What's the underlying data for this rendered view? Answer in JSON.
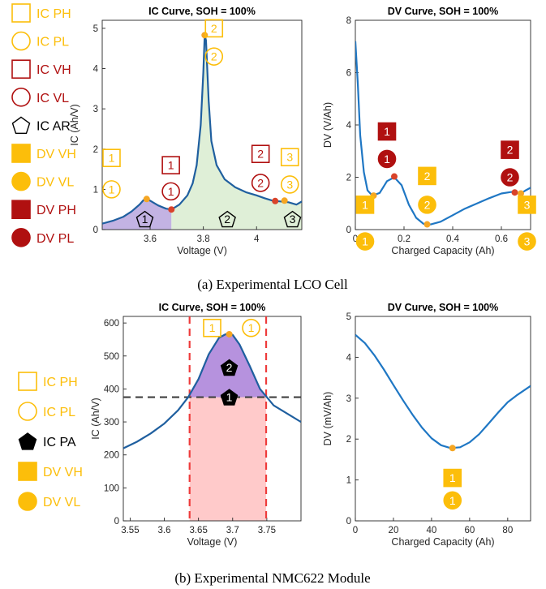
{
  "captions": {
    "a": "(a) Experimental LCO Cell",
    "b": "(b) Experimental NMC622 Module"
  },
  "colors": {
    "ic_line": "#1f5f9f",
    "dv_line": "#1f77c4",
    "dark_red": "#b01010",
    "gold": "#fcbe0a",
    "marker_orange": "#f5a623",
    "marker_red": "#d9432a",
    "area1": "#b8a6de",
    "area2": "#d9ecd0",
    "area_purple": "#a97fd8",
    "area_pink": "#ffc4c4",
    "dash_red": "#ee3b3b",
    "dash_gray": "#404040"
  },
  "legend_a": [
    {
      "label": "IC PH",
      "symbol": "square-open",
      "color": "gold"
    },
    {
      "label": "IC PL",
      "symbol": "circle-open",
      "color": "gold"
    },
    {
      "label": "IC VH",
      "symbol": "square-open",
      "color": "dark_red"
    },
    {
      "label": "IC VL",
      "symbol": "circle-open",
      "color": "dark_red"
    },
    {
      "label": "IC AR",
      "symbol": "pentagon-open",
      "color": "black"
    },
    {
      "label": "DV VH",
      "symbol": "square-filled",
      "color": "gold"
    },
    {
      "label": "DV VL",
      "symbol": "circle-filled",
      "color": "gold"
    },
    {
      "label": "DV PH",
      "symbol": "square-filled",
      "color": "dark_red"
    },
    {
      "label": "DV PL",
      "symbol": "circle-filled",
      "color": "dark_red"
    }
  ],
  "legend_b": [
    {
      "label": "IC PH",
      "symbol": "square-open",
      "color": "gold"
    },
    {
      "label": "IC PL",
      "symbol": "circle-open",
      "color": "gold"
    },
    {
      "label": "IC PA",
      "symbol": "pentagon-filled",
      "color": "black"
    },
    {
      "label": "DV VH",
      "symbol": "square-filled",
      "color": "gold"
    },
    {
      "label": "DV VL",
      "symbol": "circle-filled",
      "color": "gold"
    }
  ],
  "chart_data": [
    {
      "id": "a-ic",
      "type": "line",
      "title": "IC Curve, SOH = 100%",
      "xlabel": "Voltage (V)",
      "ylabel": "IC (Ah/V)",
      "xlim": [
        3.42,
        4.17
      ],
      "ylim": [
        0,
        5.2
      ],
      "xticks": [
        3.6,
        3.8,
        4.0
      ],
      "xticklabels": [
        "3.6",
        "3.8",
        "4"
      ],
      "yticks": [
        0,
        1,
        2,
        3,
        4,
        5
      ],
      "series": [
        {
          "x": [
            3.42,
            3.46,
            3.5,
            3.53,
            3.56,
            3.575,
            3.585,
            3.6,
            3.63,
            3.66,
            3.68,
            3.71,
            3.74,
            3.76,
            3.775,
            3.79,
            3.8,
            3.805,
            3.81,
            3.82,
            3.83,
            3.85,
            3.88,
            3.92,
            3.96,
            4.0,
            4.03,
            4.06,
            4.09,
            4.12,
            4.15,
            4.17
          ],
          "y": [
            0.15,
            0.22,
            0.32,
            0.45,
            0.62,
            0.73,
            0.76,
            0.72,
            0.6,
            0.52,
            0.5,
            0.62,
            0.85,
            1.15,
            1.6,
            2.6,
            3.9,
            4.83,
            4.7,
            3.2,
            2.2,
            1.6,
            1.25,
            1.05,
            0.93,
            0.85,
            0.78,
            0.72,
            0.7,
            0.68,
            0.62,
            0.7
          ]
        }
      ],
      "markers": [
        {
          "x": 3.587,
          "y": 0.76,
          "color": "marker_orange"
        },
        {
          "x": 3.68,
          "y": 0.5,
          "color": "marker_red"
        },
        {
          "x": 3.805,
          "y": 4.83,
          "color": "marker_orange"
        },
        {
          "x": 4.07,
          "y": 0.71,
          "color": "marker_red"
        },
        {
          "x": 4.105,
          "y": 0.72,
          "color": "marker_orange"
        }
      ],
      "areas": [
        {
          "from": 3.42,
          "to": 3.68,
          "color": "area1"
        },
        {
          "from": 3.68,
          "to": 4.17,
          "color": "area2"
        }
      ],
      "annotations": [
        {
          "shape": "square-open",
          "text": "1",
          "color": "gold",
          "x": 3.455,
          "y": 1.78
        },
        {
          "shape": "circle-open",
          "text": "1",
          "color": "gold",
          "x": 3.455,
          "y": 1.0
        },
        {
          "shape": "square-open",
          "text": "1",
          "color": "dark_red",
          "x": 3.678,
          "y": 1.6
        },
        {
          "shape": "circle-open",
          "text": "1",
          "color": "dark_red",
          "x": 3.678,
          "y": 0.95
        },
        {
          "shape": "square-open",
          "text": "2",
          "color": "gold",
          "x": 3.84,
          "y": 5.0
        },
        {
          "shape": "circle-open",
          "text": "2",
          "color": "gold",
          "x": 3.84,
          "y": 4.3
        },
        {
          "shape": "square-open",
          "text": "2",
          "color": "dark_red",
          "x": 4.015,
          "y": 1.88
        },
        {
          "shape": "circle-open",
          "text": "2",
          "color": "dark_red",
          "x": 4.015,
          "y": 1.16
        },
        {
          "shape": "square-open",
          "text": "3",
          "color": "gold",
          "x": 4.125,
          "y": 1.8
        },
        {
          "shape": "circle-open",
          "text": "3",
          "color": "gold",
          "x": 4.125,
          "y": 1.12
        },
        {
          "shape": "pentagon-open",
          "text": "1",
          "color": "black",
          "x": 3.58,
          "y": 0.26
        },
        {
          "shape": "pentagon-open",
          "text": "2",
          "color": "black",
          "x": 3.89,
          "y": 0.26
        },
        {
          "shape": "pentagon-open",
          "text": "3",
          "color": "black",
          "x": 4.135,
          "y": 0.26
        }
      ]
    },
    {
      "id": "a-dv",
      "type": "line",
      "title": "DV Curve, SOH = 100%",
      "xlabel": "Charged Capacity (Ah)",
      "ylabel": "DV (V/Ah)",
      "xlim": [
        0,
        0.72
      ],
      "ylim": [
        0,
        8
      ],
      "xticks": [
        0,
        0.2,
        0.4,
        0.6
      ],
      "xticklabels": [
        "0",
        "0.2",
        "0.4",
        "0.6"
      ],
      "yticks": [
        0,
        2,
        4,
        6,
        8
      ],
      "series": [
        {
          "x": [
            0.0,
            0.01,
            0.02,
            0.035,
            0.05,
            0.07,
            0.1,
            0.13,
            0.16,
            0.19,
            0.22,
            0.25,
            0.28,
            0.31,
            0.35,
            0.4,
            0.45,
            0.5,
            0.55,
            0.6,
            0.65,
            0.68,
            0.7,
            0.72
          ],
          "y": [
            7.2,
            5.6,
            3.6,
            2.2,
            1.5,
            1.3,
            1.4,
            1.85,
            2.0,
            1.7,
            0.95,
            0.45,
            0.22,
            0.2,
            0.3,
            0.55,
            0.8,
            1.0,
            1.2,
            1.38,
            1.45,
            1.38,
            1.5,
            1.6
          ]
        }
      ],
      "markers": [
        {
          "x": 0.075,
          "y": 1.3,
          "color": "marker_orange"
        },
        {
          "x": 0.16,
          "y": 2.03,
          "color": "marker_red"
        },
        {
          "x": 0.295,
          "y": 0.2,
          "color": "marker_orange"
        },
        {
          "x": 0.655,
          "y": 1.42,
          "color": "marker_red"
        },
        {
          "x": 0.68,
          "y": 1.38,
          "color": "marker_orange"
        }
      ],
      "annotations": [
        {
          "shape": "square-filled",
          "text": "1",
          "color": "dark_red",
          "x": 0.13,
          "y": 3.75
        },
        {
          "shape": "circle-filled",
          "text": "1",
          "color": "dark_red",
          "x": 0.13,
          "y": 2.7
        },
        {
          "shape": "square-filled",
          "text": "2",
          "color": "gold",
          "x": 0.295,
          "y": 2.05
        },
        {
          "shape": "circle-filled",
          "text": "2",
          "color": "gold",
          "x": 0.295,
          "y": 0.95
        },
        {
          "shape": "square-filled",
          "text": "2",
          "color": "dark_red",
          "x": 0.635,
          "y": 3.05
        },
        {
          "shape": "circle-filled",
          "text": "2",
          "color": "dark_red",
          "x": 0.635,
          "y": 2.0
        },
        {
          "shape": "square-filled",
          "text": "1",
          "color": "gold",
          "x": 0.04,
          "y": 0.95
        },
        {
          "shape": "circle-filled",
          "text": "1",
          "color": "gold",
          "x": 0.04,
          "y": -0.45
        },
        {
          "shape": "square-filled",
          "text": "3",
          "color": "gold",
          "x": 0.705,
          "y": 0.95
        },
        {
          "shape": "circle-filled",
          "text": "3",
          "color": "gold",
          "x": 0.705,
          "y": -0.45
        }
      ]
    },
    {
      "id": "b-ic",
      "type": "line",
      "title": "IC Curve, SOH = 100%",
      "xlabel": "Voltage (V)",
      "ylabel": "IC (Ah/V)",
      "xlim": [
        3.54,
        3.8
      ],
      "ylim": [
        0,
        620
      ],
      "xticks": [
        3.55,
        3.6,
        3.65,
        3.7,
        3.75
      ],
      "xticklabels": [
        "3.55",
        "3.6",
        "3.65",
        "3.7",
        "3.75"
      ],
      "yticks": [
        0,
        100,
        200,
        300,
        400,
        500,
        600
      ],
      "series": [
        {
          "x": [
            3.54,
            3.56,
            3.58,
            3.6,
            3.62,
            3.635,
            3.65,
            3.665,
            3.68,
            3.69,
            3.695,
            3.7,
            3.71,
            3.725,
            3.74,
            3.75,
            3.76,
            3.78,
            3.8
          ],
          "y": [
            220,
            240,
            265,
            295,
            335,
            375,
            430,
            505,
            555,
            566,
            568,
            564,
            535,
            470,
            400,
            375,
            350,
            325,
            300
          ]
        }
      ],
      "hline": 375,
      "vlines": [
        3.637,
        3.749
      ],
      "markers": [
        {
          "x": 3.695,
          "y": 566,
          "color": "marker_orange"
        }
      ],
      "annotations": [
        {
          "shape": "square-open",
          "text": "1",
          "color": "gold",
          "x": 3.67,
          "y": 585
        },
        {
          "shape": "circle-open",
          "text": "1",
          "color": "gold",
          "x": 3.727,
          "y": 585
        },
        {
          "shape": "pentagon-filled",
          "text": "2",
          "color": "black",
          "x": 3.695,
          "y": 465
        },
        {
          "shape": "pentagon-filled",
          "text": "1",
          "color": "black",
          "x": 3.695,
          "y": 375
        }
      ]
    },
    {
      "id": "b-dv",
      "type": "line",
      "title": "DV Curve, SOH = 100%",
      "xlabel": "Charged Capacity (Ah)",
      "ylabel": "DV (mV/Ah)",
      "xlim": [
        0,
        92
      ],
      "ylim": [
        0,
        5
      ],
      "xticks": [
        0,
        20,
        40,
        60,
        80
      ],
      "xticklabels": [
        "0",
        "20",
        "40",
        "60",
        "80"
      ],
      "yticks": [
        0,
        1,
        2,
        3,
        4,
        5
      ],
      "series": [
        {
          "x": [
            0,
            5,
            10,
            15,
            20,
            25,
            30,
            35,
            40,
            45,
            50,
            55,
            60,
            65,
            70,
            75,
            80,
            85,
            92
          ],
          "y": [
            4.55,
            4.35,
            4.05,
            3.7,
            3.32,
            2.95,
            2.6,
            2.28,
            2.02,
            1.85,
            1.78,
            1.8,
            1.92,
            2.12,
            2.38,
            2.65,
            2.9,
            3.08,
            3.3
          ]
        }
      ],
      "markers": [
        {
          "x": 51,
          "y": 1.78,
          "color": "marker_orange"
        }
      ],
      "annotations": [
        {
          "shape": "square-filled",
          "text": "1",
          "color": "gold",
          "x": 51,
          "y": 1.05
        },
        {
          "shape": "circle-filled",
          "text": "1",
          "color": "gold",
          "x": 51,
          "y": 0.5
        }
      ]
    }
  ]
}
